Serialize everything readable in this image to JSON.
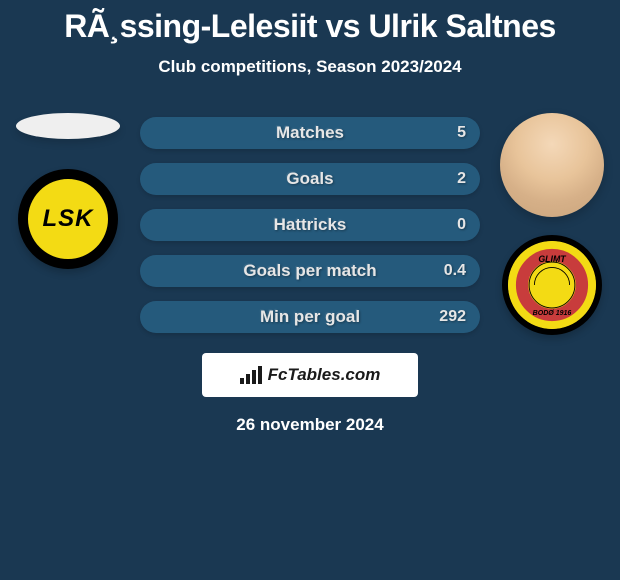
{
  "page": {
    "background_color": "#1a3852",
    "text_color": "#ffffff",
    "secondary_text_color": "#c9d4de"
  },
  "header": {
    "title": "RÃ¸ssing-Lelesiit vs Ulrik Saltnes",
    "subtitle": "Club competitions, Season 2023/2024",
    "title_color": "#ffffff",
    "subtitle_color": "#ffffff"
  },
  "left": {
    "player_badge_bg": "#efefef",
    "club_badge_bg": "#f3db14",
    "club_badge_border": "#000000",
    "club_badge_text": "LSK",
    "club_badge_text_color": "#000000"
  },
  "right": {
    "club_badge_bg": "#f3db14",
    "club_badge_border": "#000000",
    "club_badge_text_top": "GLIMT",
    "club_badge_text_bottom": "BODØ 1916"
  },
  "stats": {
    "pill_bg": "#255a7c",
    "pill_text": "#e6e6e6",
    "value_text": "#e6e6e6",
    "rows": [
      {
        "label": "Matches",
        "left": "",
        "right": "5"
      },
      {
        "label": "Goals",
        "left": "",
        "right": "2"
      },
      {
        "label": "Hattricks",
        "left": "",
        "right": "0"
      },
      {
        "label": "Goals per match",
        "left": "",
        "right": "0.4"
      },
      {
        "label": "Min per goal",
        "left": "",
        "right": "292"
      }
    ]
  },
  "brand": {
    "box_bg": "#ffffff",
    "text_color": "#1a1a1a",
    "text": "FcTables.com",
    "bar_color": "#1a1a1a"
  },
  "footer": {
    "date": "26 november 2024",
    "date_color": "#ffffff"
  }
}
